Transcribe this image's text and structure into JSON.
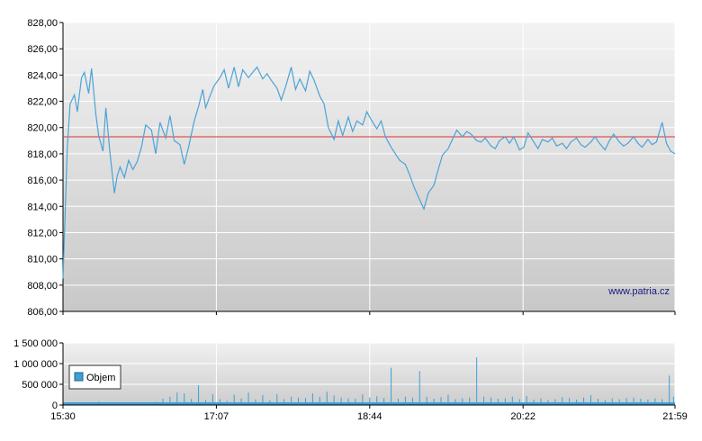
{
  "watermark": "www.patria.cz",
  "chart_data": [
    {
      "type": "line",
      "title": "",
      "ylim": [
        806.0,
        828.0
      ],
      "yticks": [
        "806,00",
        "808,00",
        "810,00",
        "812,00",
        "814,00",
        "816,00",
        "818,00",
        "820,00",
        "822,00",
        "824,00",
        "826,00",
        "828,00"
      ],
      "ytick_values": [
        806,
        808,
        810,
        812,
        814,
        816,
        818,
        820,
        822,
        824,
        826,
        828
      ],
      "reference_line": 819.3,
      "line_color": "#4aa3d6",
      "reference_color": "#e03030",
      "grid": true,
      "series": [
        {
          "x": [
            0,
            3,
            5,
            8,
            10,
            13,
            15,
            18,
            20,
            23,
            25,
            28,
            30,
            33,
            36,
            38,
            40,
            43,
            46,
            49,
            52,
            55,
            58,
            62,
            65,
            68,
            72,
            75,
            78,
            82,
            85,
            88,
            92,
            95,
            98,
            100,
            103,
            106,
            110,
            113,
            116,
            120,
            123,
            126,
            130,
            133,
            136,
            140,
            143,
            146,
            150,
            153,
            156,
            160,
            163,
            166,
            170,
            173,
            176,
            180,
            183,
            186,
            190,
            193,
            196,
            200,
            203,
            206,
            210,
            213,
            216,
            220,
            223,
            226,
            230,
            233,
            236,
            240,
            243,
            246,
            250,
            253,
            256,
            260,
            263,
            266,
            270,
            273,
            276,
            280,
            283,
            286,
            290,
            293,
            296,
            300,
            303,
            306,
            310,
            313,
            316,
            320,
            323,
            326,
            330,
            333,
            336,
            340,
            343,
            346,
            350,
            353,
            356,
            360,
            363,
            366,
            370,
            373,
            376,
            380,
            383,
            386,
            390,
            393,
            396,
            400,
            403,
            406,
            410,
            413,
            416,
            420,
            423,
            426,
            429
          ],
          "y": [
            808.5,
            818.5,
            821.8,
            822.5,
            821.2,
            823.8,
            824.2,
            822.6,
            824.5,
            821.0,
            819.4,
            818.2,
            821.5,
            818.0,
            815.0,
            816.3,
            817.0,
            816.2,
            817.5,
            816.8,
            817.4,
            818.5,
            820.2,
            819.8,
            818.0,
            820.4,
            819.2,
            820.9,
            819.0,
            818.7,
            817.2,
            818.5,
            820.5,
            821.6,
            822.9,
            821.5,
            822.4,
            823.2,
            823.8,
            824.4,
            823.0,
            824.6,
            823.1,
            824.4,
            823.8,
            824.2,
            824.6,
            823.7,
            824.1,
            823.6,
            823.0,
            822.1,
            823.1,
            824.6,
            822.9,
            823.7,
            822.8,
            824.3,
            823.6,
            822.4,
            821.8,
            820.0,
            819.1,
            820.5,
            819.4,
            820.8,
            819.7,
            820.5,
            820.2,
            821.2,
            820.6,
            819.9,
            820.5,
            819.3,
            818.5,
            818.0,
            817.5,
            817.2,
            816.4,
            815.5,
            814.5,
            813.8,
            815.0,
            815.6,
            816.8,
            817.9,
            818.4,
            819.1,
            819.8,
            819.3,
            819.7,
            819.5,
            819.0,
            818.9,
            819.2,
            818.6,
            818.4,
            819.0,
            819.3,
            818.8,
            819.3,
            818.3,
            818.5,
            819.6,
            818.9,
            818.4,
            819.1,
            818.9,
            819.2,
            818.6,
            818.8,
            818.4,
            818.9,
            819.2,
            818.7,
            818.5,
            818.9,
            819.3,
            818.8,
            818.3,
            819.0,
            819.5,
            818.9,
            818.6,
            818.8,
            819.3,
            818.8,
            818.5,
            819.1,
            818.7,
            818.9,
            820.4,
            818.8,
            818.2,
            818.0
          ]
        }
      ]
    },
    {
      "type": "bar",
      "title": "",
      "ylim": [
        0,
        1500000
      ],
      "yticks": [
        "0",
        "500 000",
        "1 000 000",
        "1 500 000"
      ],
      "ytick_values": [
        0,
        500000,
        1000000,
        1500000
      ],
      "xticks": [
        "15:30",
        "17:07",
        "18:44",
        "20:22",
        "21:59"
      ],
      "bar_color": "#3aa0d8",
      "legend": {
        "label": "Objem",
        "placement": "upper-left"
      },
      "series": [
        {
          "name": "Objem",
          "x": [
            0,
            5,
            10,
            15,
            20,
            25,
            30,
            35,
            40,
            45,
            50,
            55,
            60,
            65,
            70,
            75,
            80,
            85,
            90,
            95,
            100,
            105,
            110,
            115,
            120,
            125,
            130,
            135,
            140,
            145,
            150,
            155,
            160,
            165,
            170,
            175,
            180,
            185,
            190,
            195,
            200,
            205,
            210,
            215,
            220,
            225,
            230,
            235,
            240,
            245,
            250,
            255,
            260,
            265,
            270,
            275,
            280,
            285,
            290,
            295,
            300,
            305,
            310,
            315,
            320,
            325,
            330,
            335,
            340,
            345,
            350,
            355,
            360,
            365,
            370,
            375,
            380,
            385,
            390,
            395,
            400,
            405,
            410,
            415,
            420,
            425,
            428
          ],
          "values": [
            120000,
            60000,
            40000,
            50000,
            30000,
            80000,
            40000,
            50000,
            60000,
            30000,
            40000,
            30000,
            60000,
            80000,
            150000,
            200000,
            300000,
            280000,
            150000,
            480000,
            120000,
            260000,
            140000,
            100000,
            250000,
            160000,
            300000,
            130000,
            240000,
            110000,
            260000,
            140000,
            200000,
            180000,
            170000,
            280000,
            200000,
            320000,
            230000,
            180000,
            160000,
            150000,
            260000,
            180000,
            210000,
            170000,
            900000,
            150000,
            200000,
            180000,
            820000,
            200000,
            150000,
            190000,
            250000,
            140000,
            160000,
            180000,
            1150000,
            200000,
            180000,
            150000,
            160000,
            200000,
            140000,
            220000,
            130000,
            160000,
            120000,
            140000,
            190000,
            170000,
            130000,
            180000,
            240000,
            150000,
            120000,
            160000,
            140000,
            170000,
            180000,
            150000,
            130000,
            160000,
            140000,
            710000,
            200000
          ]
        }
      ]
    }
  ]
}
